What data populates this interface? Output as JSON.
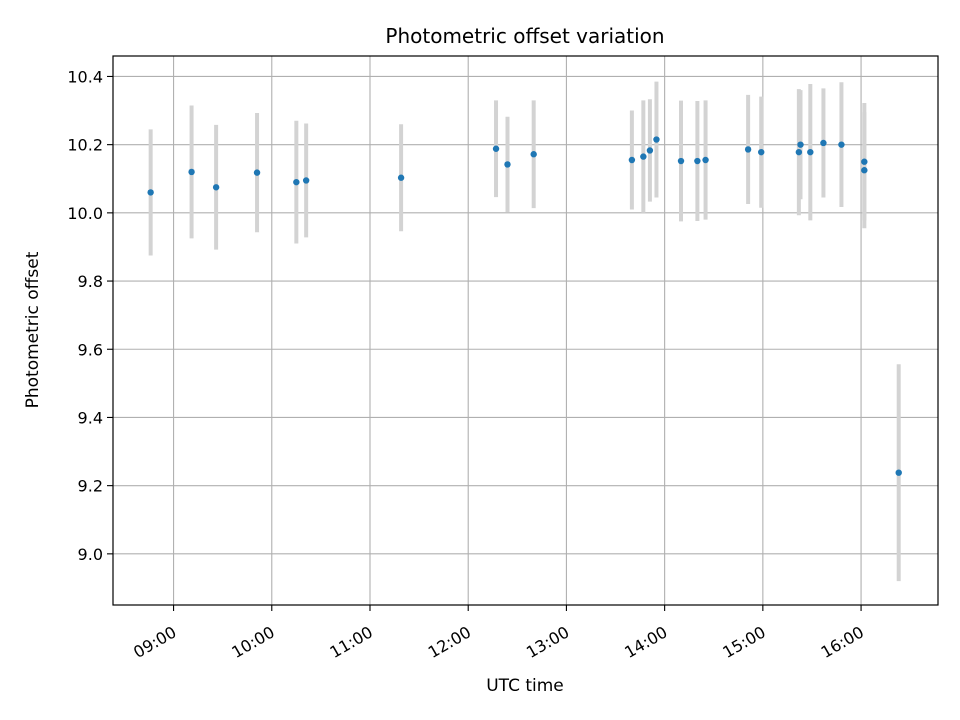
{
  "chart_data": {
    "type": "scatter",
    "title": "Photometric offset variation",
    "xlabel": "UTC time",
    "ylabel": "Photometric offset",
    "x_axis_type": "time",
    "xlim": [
      "08:23",
      "16:47"
    ],
    "ylim": [
      8.85,
      10.46
    ],
    "xticks": [
      "09:00",
      "10:00",
      "11:00",
      "12:00",
      "13:00",
      "14:00",
      "15:00",
      "16:00"
    ],
    "yticks": [
      9.0,
      9.2,
      9.4,
      9.6,
      9.8,
      10.0,
      10.2,
      10.4
    ],
    "ytick_labels": [
      "9.0",
      "9.2",
      "9.4",
      "9.6",
      "9.8",
      "10.0",
      "10.2",
      "10.4"
    ],
    "grid": true,
    "colors": {
      "marker": "#1f77b4",
      "errorbar": "#d3d3d3",
      "grid": "#b0b0b0"
    },
    "points": [
      {
        "x": "08:46",
        "y": 10.06,
        "yerr": 0.185
      },
      {
        "x": "09:11",
        "y": 10.12,
        "yerr": 0.195
      },
      {
        "x": "09:26",
        "y": 10.075,
        "yerr": 0.183
      },
      {
        "x": "09:51",
        "y": 10.118,
        "yerr": 0.175
      },
      {
        "x": "10:15",
        "y": 10.09,
        "yerr": 0.18
      },
      {
        "x": "10:21",
        "y": 10.095,
        "yerr": 0.167
      },
      {
        "x": "11:19",
        "y": 10.103,
        "yerr": 0.157
      },
      {
        "x": "12:17",
        "y": 10.188,
        "yerr": 0.142
      },
      {
        "x": "12:24",
        "y": 10.142,
        "yerr": 0.14
      },
      {
        "x": "12:40",
        "y": 10.172,
        "yerr": 0.158
      },
      {
        "x": "13:40",
        "y": 10.155,
        "yerr": 0.145
      },
      {
        "x": "13:47",
        "y": 10.165,
        "yerr": 0.165
      },
      {
        "x": "13:51",
        "y": 10.183,
        "yerr": 0.15
      },
      {
        "x": "13:55",
        "y": 10.215,
        "yerr": 0.17
      },
      {
        "x": "14:10",
        "y": 10.152,
        "yerr": 0.177
      },
      {
        "x": "14:20",
        "y": 10.152,
        "yerr": 0.176
      },
      {
        "x": "14:25",
        "y": 10.155,
        "yerr": 0.175
      },
      {
        "x": "14:51",
        "y": 10.186,
        "yerr": 0.16
      },
      {
        "x": "14:59",
        "y": 10.178,
        "yerr": 0.163
      },
      {
        "x": "15:22",
        "y": 10.178,
        "yerr": 0.185
      },
      {
        "x": "15:23",
        "y": 10.2,
        "yerr": 0.16
      },
      {
        "x": "15:29",
        "y": 10.178,
        "yerr": 0.2
      },
      {
        "x": "15:37",
        "y": 10.205,
        "yerr": 0.16
      },
      {
        "x": "15:48",
        "y": 10.2,
        "yerr": 0.183
      },
      {
        "x": "16:02",
        "y": 10.125,
        "yerr": 0.17
      },
      {
        "x": "16:02",
        "y": 10.15,
        "yerr": 0.172
      },
      {
        "x": "16:23",
        "y": 9.238,
        "yerr": 0.318
      }
    ]
  }
}
